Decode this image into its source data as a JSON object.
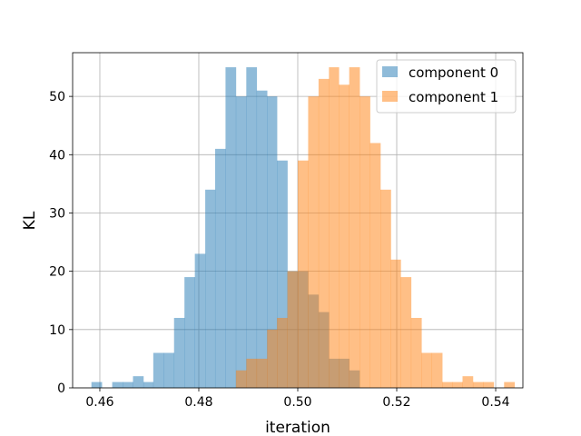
{
  "chart_data": {
    "type": "histogram",
    "xlabel": "iteration",
    "ylabel": "KL",
    "xlim": [
      0.4545,
      0.5455
    ],
    "ylim": [
      0,
      57.5
    ],
    "xticks": [
      0.46,
      0.48,
      0.5,
      0.52,
      0.54
    ],
    "xtick_labels": [
      "0.46",
      "0.48",
      "0.50",
      "0.52",
      "0.54"
    ],
    "yticks": [
      0,
      10,
      20,
      30,
      40,
      50
    ],
    "ytick_labels": [
      "0",
      "10",
      "20",
      "30",
      "40",
      "50"
    ],
    "grid": true,
    "legend_position": "top-right",
    "series": [
      {
        "name": "component 0",
        "color": "#1f77b4",
        "alpha": 0.5,
        "bin_edges": [
          0.4583,
          0.4604,
          0.4625,
          0.4646,
          0.4667,
          0.4688,
          0.4708,
          0.4729,
          0.475,
          0.4771,
          0.4792,
          0.4813,
          0.4833,
          0.4854,
          0.4875,
          0.4896,
          0.4917,
          0.4938,
          0.4958,
          0.4979,
          0.5,
          0.5021,
          0.5042,
          0.5063,
          0.5083,
          0.5104,
          0.5125
        ],
        "counts": [
          1,
          0,
          1,
          1,
          2,
          1,
          6,
          6,
          12,
          19,
          23,
          34,
          41,
          55,
          50,
          55,
          51,
          50,
          39,
          20,
          20,
          16,
          13,
          5,
          5,
          3
        ]
      },
      {
        "name": "component 1",
        "color": "#ff7f0e",
        "alpha": 0.5,
        "bin_edges": [
          0.4875,
          0.4896,
          0.4917,
          0.4938,
          0.4958,
          0.4979,
          0.5,
          0.5021,
          0.5042,
          0.5063,
          0.5083,
          0.5104,
          0.5125,
          0.5146,
          0.5167,
          0.5188,
          0.5208,
          0.5229,
          0.525,
          0.5271,
          0.5292,
          0.5313,
          0.5333,
          0.5354,
          0.5375,
          0.5396,
          0.5417,
          0.5438
        ],
        "counts": [
          3,
          5,
          5,
          10,
          12,
          20,
          39,
          50,
          53,
          55,
          52,
          55,
          50,
          42,
          34,
          22,
          19,
          12,
          6,
          6,
          1,
          1,
          2,
          1,
          1,
          0,
          1
        ]
      }
    ]
  }
}
